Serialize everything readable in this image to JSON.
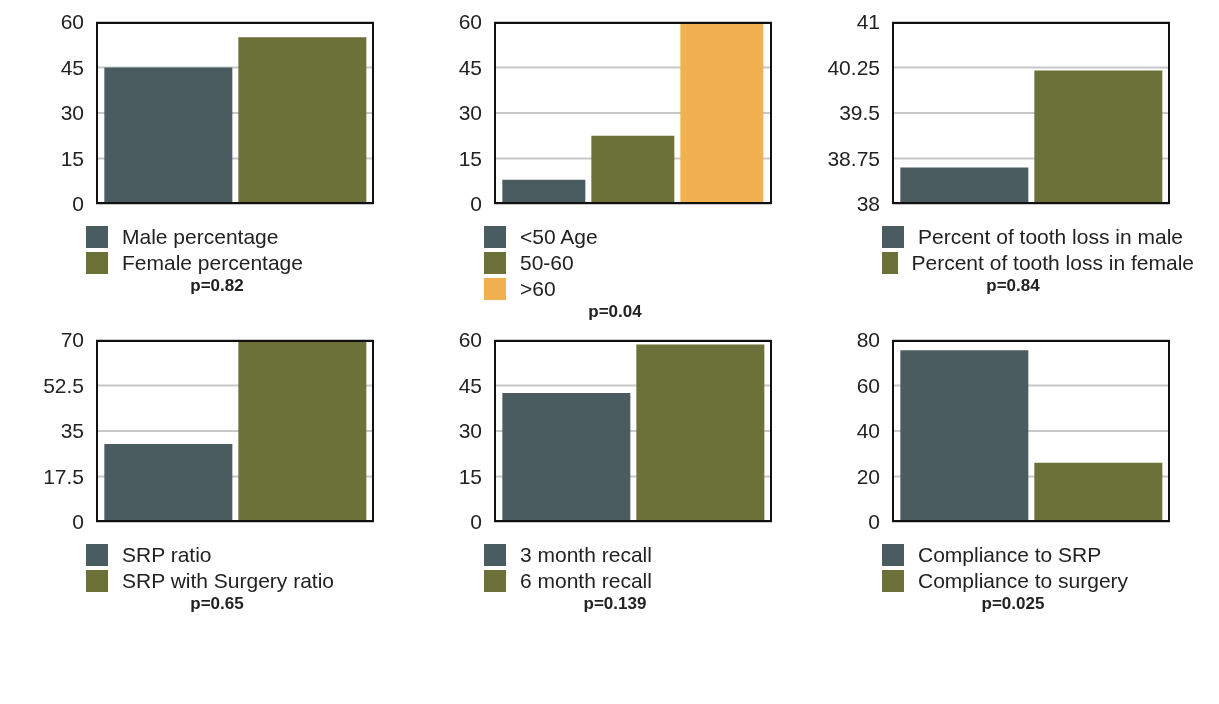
{
  "chart_data": [
    {
      "type": "bar",
      "categories": [
        null
      ],
      "series": [
        {
          "name": "Male percentage",
          "color": "#4a5c60",
          "values": [
            45
          ]
        },
        {
          "name": "Female percentage",
          "color": "#6b7138",
          "values": [
            55
          ]
        }
      ],
      "ylim": [
        0,
        60
      ],
      "yticks": [
        0,
        15,
        30,
        45,
        60
      ],
      "grid": "y",
      "legend": "bottom",
      "tick_labels": "y",
      "annotations": [
        "p=0.82"
      ]
    },
    {
      "type": "bar",
      "categories": [
        null
      ],
      "series": [
        {
          "name": "<50 Age",
          "color": "#4a5c60",
          "values": [
            8
          ]
        },
        {
          "name": "50-60",
          "color": "#6b7138",
          "values": [
            22.5
          ]
        },
        {
          "name": ">60",
          "color": "#f2b150",
          "values": [
            60
          ]
        }
      ],
      "ylim": [
        0,
        60
      ],
      "yticks": [
        0,
        15,
        30,
        45,
        60
      ],
      "grid": "y",
      "legend": "bottom",
      "tick_labels": "y",
      "annotations": [
        "p=0.04"
      ]
    },
    {
      "type": "bar",
      "categories": [
        null
      ],
      "series": [
        {
          "name": "Percent of tooth loss in male",
          "color": "#4a5c60",
          "values": [
            38.6
          ]
        },
        {
          "name": "Percent of tooth loss in female",
          "color": "#6b7138",
          "values": [
            40.2
          ]
        }
      ],
      "ylim": [
        38,
        41
      ],
      "yticks": [
        38,
        38.75,
        39.5,
        40.25,
        41
      ],
      "grid": "y",
      "legend": "bottom",
      "tick_labels": "y",
      "annotations": [
        "p=0.84"
      ]
    },
    {
      "type": "bar",
      "categories": [
        null
      ],
      "series": [
        {
          "name": "SRP ratio",
          "color": "#4a5c60",
          "values": [
            30
          ]
        },
        {
          "name": "SRP with Surgery ratio",
          "color": "#6b7138",
          "values": [
            70
          ]
        }
      ],
      "ylim": [
        0,
        70
      ],
      "yticks": [
        0,
        17.5,
        35,
        52.5,
        70
      ],
      "grid": "y",
      "legend": "bottom",
      "tick_labels": "y",
      "annotations": [
        "p=0.65"
      ]
    },
    {
      "type": "bar",
      "categories": [
        null
      ],
      "series": [
        {
          "name": "3 month recall",
          "color": "#4a5c60",
          "values": [
            42.5
          ]
        },
        {
          "name": "6 month recall",
          "color": "#6b7138",
          "values": [
            58.5
          ]
        }
      ],
      "ylim": [
        0,
        60
      ],
      "yticks": [
        0,
        15,
        30,
        45,
        60
      ],
      "grid": "y",
      "legend": "bottom",
      "tick_labels": "y",
      "annotations": [
        "p=0.139"
      ]
    },
    {
      "type": "bar",
      "categories": [
        null
      ],
      "series": [
        {
          "name": "Compliance to SRP",
          "color": "#4a5c60",
          "values": [
            75.5
          ]
        },
        {
          "name": "Compliance to surgery",
          "color": "#6b7138",
          "values": [
            26
          ]
        }
      ],
      "ylim": [
        0,
        80
      ],
      "yticks": [
        0,
        20,
        40,
        60,
        80
      ],
      "grid": "y",
      "legend": "bottom",
      "tick_labels": "y",
      "annotations": [
        "p=0.025"
      ]
    }
  ]
}
